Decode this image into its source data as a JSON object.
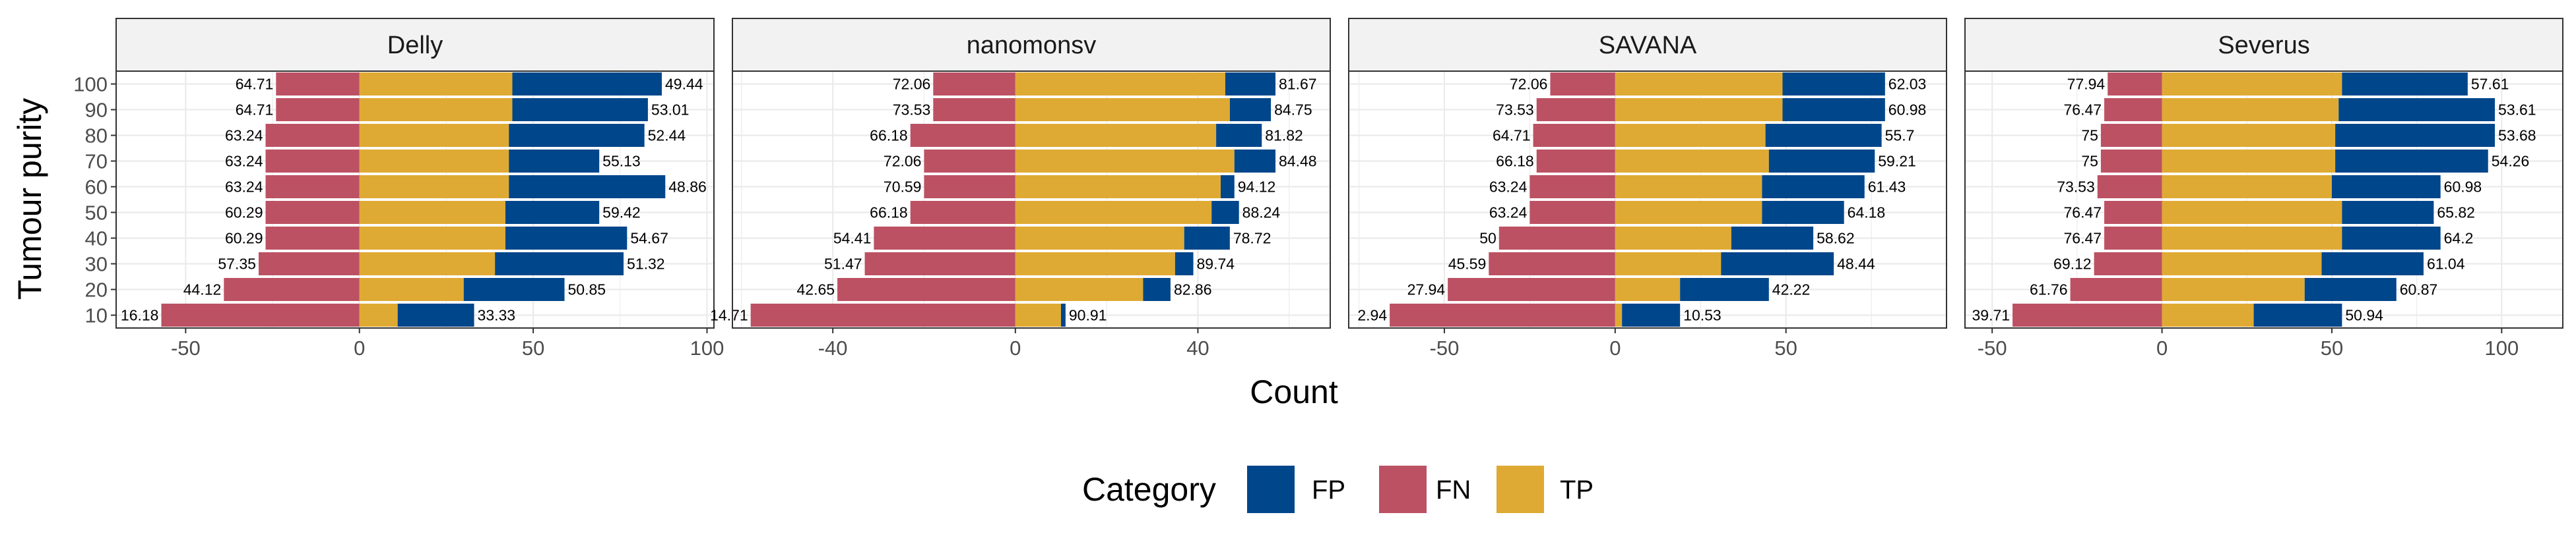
{
  "chart_data": {
    "type": "bar",
    "orientation": "horizontal",
    "stacked": true,
    "xlabel": "Count",
    "ylabel": "Tumour purity",
    "categories": [
      "10",
      "20",
      "30",
      "40",
      "50",
      "60",
      "70",
      "80",
      "90",
      "100"
    ],
    "legend": {
      "title": "Category",
      "position": "bottom",
      "items": [
        {
          "name": "FP",
          "color": "#00468B"
        },
        {
          "name": "FN",
          "color": "#BC5163"
        },
        {
          "name": "TP",
          "color": "#DFAA33"
        }
      ]
    },
    "grid": true,
    "facets": [
      {
        "name": "Delly",
        "xlim": [
          -70,
          102
        ],
        "xticks": [
          -50,
          0,
          50,
          100
        ],
        "xtick_labels": [
          "-50",
          "0",
          "50",
          "100"
        ],
        "series": [
          {
            "name": "FN",
            "values": [
              -57,
              -39,
              -29,
              -27,
              -27,
              -27,
              -27,
              -27,
              -24,
              -24
            ]
          },
          {
            "name": "TP",
            "values": [
              11,
              30,
              39,
              42,
              42,
              43,
              43,
              43,
              44,
              44
            ]
          },
          {
            "name": "FP",
            "values": [
              22,
              29,
              37,
              35,
              27,
              45,
              26,
              39,
              39,
              43
            ]
          }
        ],
        "labels": {
          "FN": [
            "16.18",
            "44.12",
            "57.35",
            "60.29",
            "60.29",
            "63.24",
            "63.24",
            "63.24",
            "64.71",
            "64.71"
          ],
          "FP": [
            "33.33",
            "50.85",
            "51.32",
            "54.67",
            "59.42",
            "48.86",
            "55.13",
            "52.44",
            "53.01",
            "49.44"
          ]
        }
      },
      {
        "name": "nanomonsv",
        "xlim": [
          -62,
          69
        ],
        "xticks": [
          -40,
          0,
          40
        ],
        "xtick_labels": [
          "-40",
          "0",
          "40"
        ],
        "series": [
          {
            "name": "FN",
            "values": [
              -58,
              -39,
              -33,
              -31,
              -23,
              -20,
              -20,
              -23,
              -18,
              -18
            ]
          },
          {
            "name": "TP",
            "values": [
              10,
              28,
              35,
              37,
              43,
              45,
              48,
              44,
              47,
              46
            ]
          },
          {
            "name": "FP",
            "values": [
              1,
              6,
              4,
              10,
              6,
              3,
              9,
              10,
              9,
              11
            ]
          }
        ],
        "labels": {
          "FN": [
            "14.71",
            "42.65",
            "51.47",
            "54.41",
            "66.18",
            "70.59",
            "72.06",
            "66.18",
            "73.53",
            "72.06"
          ],
          "FP": [
            "90.91",
            "82.86",
            "89.74",
            "78.72",
            "88.24",
            "94.12",
            "84.48",
            "81.82",
            "84.75",
            "81.67"
          ]
        }
      },
      {
        "name": "SAVANA",
        "xlim": [
          -78,
          97
        ],
        "xticks": [
          -50,
          0,
          50
        ],
        "xtick_labels": [
          "-50",
          "0",
          "50"
        ],
        "series": [
          {
            "name": "FN",
            "values": [
              -66,
              -49,
              -37,
              -34,
              -25,
              -25,
              -23,
              -24,
              -23,
              -19
            ]
          },
          {
            "name": "TP",
            "values": [
              2,
              19,
              31,
              34,
              43,
              43,
              45,
              44,
              49,
              49
            ]
          },
          {
            "name": "FP",
            "values": [
              17,
              26,
              33,
              24,
              24,
              30,
              31,
              34,
              30,
              30
            ]
          }
        ],
        "labels": {
          "FN": [
            "2.94",
            "27.94",
            "45.59",
            "50",
            "63.24",
            "63.24",
            "66.18",
            "64.71",
            "73.53",
            "72.06"
          ],
          "FP": [
            "10.53",
            "42.22",
            "48.44",
            "58.62",
            "64.18",
            "61.43",
            "59.21",
            "55.7",
            "60.98",
            "62.03"
          ]
        }
      },
      {
        "name": "Severus",
        "xlim": [
          -58,
          118
        ],
        "xticks": [
          -50,
          0,
          50,
          100
        ],
        "xtick_labels": [
          "-50",
          "0",
          "50",
          "100"
        ],
        "series": [
          {
            "name": "FN",
            "values": [
              -44,
              -27,
              -20,
              -17,
              -17,
              -19,
              -18,
              -18,
              -17,
              -16
            ]
          },
          {
            "name": "TP",
            "values": [
              27,
              42,
              47,
              53,
              53,
              50,
              51,
              51,
              52,
              53
            ]
          },
          {
            "name": "FP",
            "values": [
              26,
              27,
              30,
              29,
              27,
              32,
              45,
              47,
              46,
              37
            ]
          }
        ],
        "labels": {
          "FN": [
            "39.71",
            "61.76",
            "69.12",
            "76.47",
            "76.47",
            "73.53",
            "75",
            "75",
            "76.47",
            "77.94"
          ],
          "FP": [
            "50.94",
            "60.87",
            "61.04",
            "64.2",
            "65.82",
            "60.98",
            "54.26",
            "53.68",
            "53.61",
            "57.61"
          ]
        }
      }
    ]
  }
}
